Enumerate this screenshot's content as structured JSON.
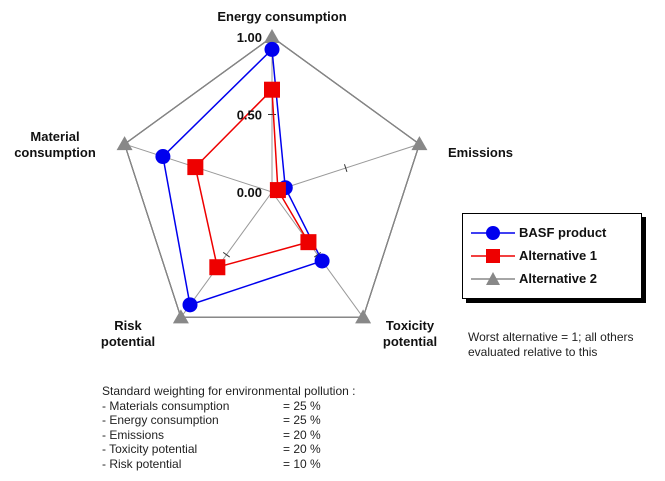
{
  "chart_data": {
    "type": "radar",
    "axes": [
      "Energy consumption",
      "Emissions",
      "Toxicity potential",
      "Risk potential",
      "Material consumption"
    ],
    "axis_label_lines": [
      [
        "Energy consumption"
      ],
      [
        "Emissions"
      ],
      [
        "Toxicity",
        "potential"
      ],
      [
        "Risk",
        "potential"
      ],
      [
        "Material",
        "consumption"
      ]
    ],
    "tick_values": [
      0.0,
      0.5,
      1.0
    ],
    "tick_labels": [
      "0.00",
      "0.50",
      "1.00"
    ],
    "rmax": 1.0,
    "series": [
      {
        "name": "BASF product",
        "color": "#0000ee",
        "marker": "circle",
        "values": [
          0.92,
          0.09,
          0.55,
          0.9,
          0.74
        ]
      },
      {
        "name": "Alternative 1",
        "color": "#ee0000",
        "marker": "square",
        "values": [
          0.66,
          0.04,
          0.4,
          0.6,
          0.52
        ]
      },
      {
        "name": "Alternative 2",
        "color": "#888888",
        "marker": "triangle",
        "values": [
          1.0,
          1.0,
          1.0,
          1.0,
          1.0
        ]
      }
    ]
  },
  "legend": {
    "items": [
      "BASF product",
      "Alternative 1",
      "Alternative 2"
    ]
  },
  "note": "Worst alternative = 1; all others evaluated relative to this",
  "weighting": {
    "title": "Standard weighting for environmental pollution :",
    "rows": [
      {
        "label": "- Materials consumption",
        "value": "= 25 %"
      },
      {
        "label": "- Energy consumption",
        "value": "= 25 %"
      },
      {
        "label": "- Emissions",
        "value": "= 20 %"
      },
      {
        "label": "- Toxicity potential",
        "value": "= 20 %"
      },
      {
        "label": "- Risk potential",
        "value": "= 10 %"
      }
    ]
  }
}
